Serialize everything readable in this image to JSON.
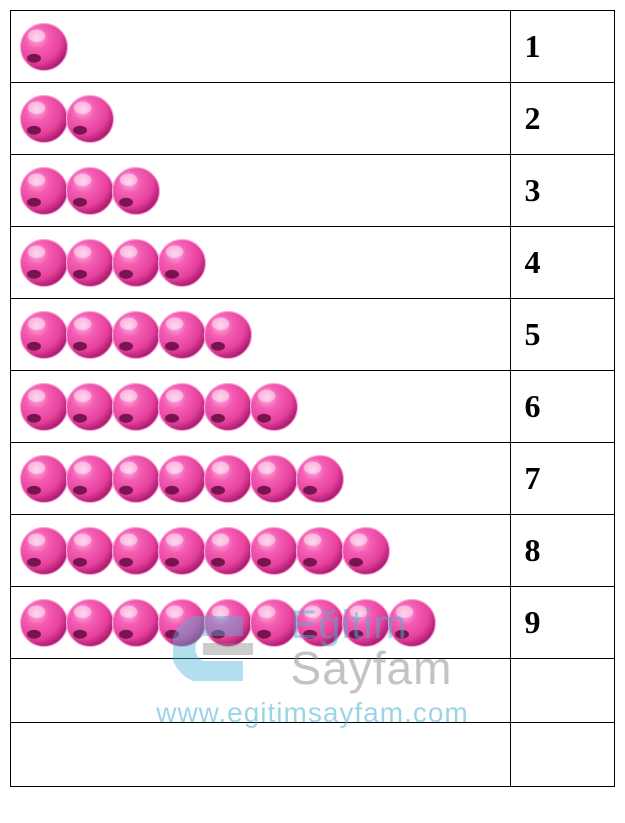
{
  "table": {
    "ball_color_base": "#e6419c",
    "ball_color_highlight": "#ffb8e2",
    "ball_color_mid": "#f45eb4",
    "ball_color_dark": "#b01f73",
    "ball_outline": "#6b1046",
    "ball_outline_light": "#f9a9d8",
    "rows": [
      {
        "count": 1,
        "label": "1"
      },
      {
        "count": 2,
        "label": "2"
      },
      {
        "count": 3,
        "label": "3"
      },
      {
        "count": 4,
        "label": "4"
      },
      {
        "count": 5,
        "label": "5"
      },
      {
        "count": 6,
        "label": "6"
      },
      {
        "count": 7,
        "label": "7"
      },
      {
        "count": 8,
        "label": "8"
      },
      {
        "count": 9,
        "label": "9"
      }
    ],
    "border_color": "#000000",
    "number_fontsize": 32,
    "number_color": "#000000",
    "ball_diameter": 50
  },
  "watermark": {
    "line1": "Eğitim",
    "line2": "Sayfam",
    "url": "www.egitimsayfam.com",
    "color_blue": "#4db1d4",
    "color_gray": "#888888"
  }
}
